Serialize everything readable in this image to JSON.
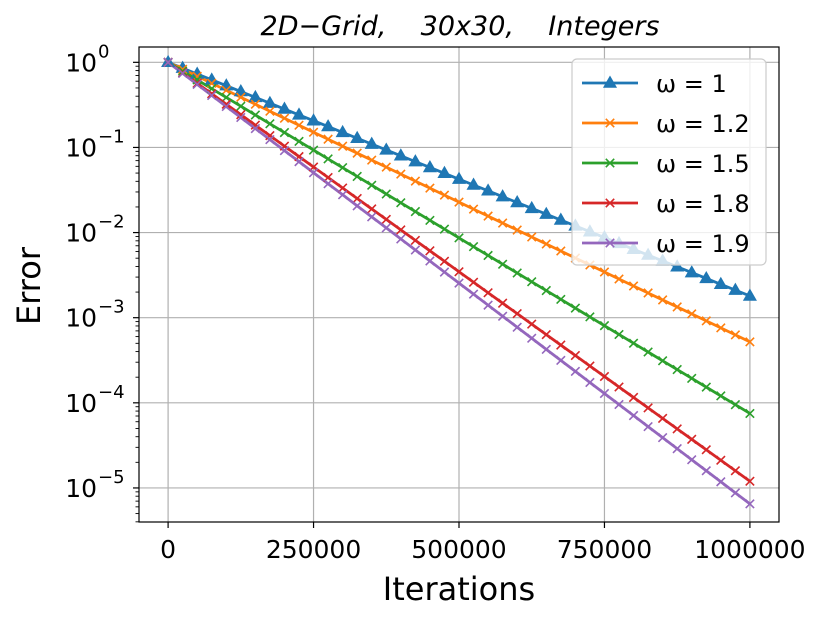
{
  "chart_data": {
    "type": "line",
    "title": "2D−Grid,    30x30,    Integers",
    "xlabel": "Iterations",
    "ylabel": "Error",
    "xlim": [
      -50000,
      1050000
    ],
    "ylim_log10": [
      -5.4,
      0.18
    ],
    "yscale": "log",
    "grid": true,
    "legend_location": "top-right",
    "x_ticks": [
      {
        "value": 0,
        "label": "0"
      },
      {
        "value": 250000,
        "label": "250000"
      },
      {
        "value": 500000,
        "label": "500000"
      },
      {
        "value": 750000,
        "label": "750000"
      },
      {
        "value": 1000000,
        "label": "1000000"
      }
    ],
    "y_ticks": [
      {
        "exp": 0,
        "base": "10",
        "sup": "0"
      },
      {
        "exp": -1,
        "base": "10",
        "sup": "−1"
      },
      {
        "exp": -2,
        "base": "10",
        "sup": "−2"
      },
      {
        "exp": -3,
        "base": "10",
        "sup": "−3"
      },
      {
        "exp": -4,
        "base": "10",
        "sup": "−4"
      },
      {
        "exp": -5,
        "base": "10",
        "sup": "−5"
      }
    ],
    "x_start": 0,
    "x_end": 1000000,
    "marker_count": 41,
    "series": [
      {
        "name": "ω = 1",
        "color": "#1f77b4",
        "marker": "triangle",
        "y_start": 1.0,
        "y_end": 0.0018
      },
      {
        "name": "ω = 1.2",
        "color": "#ff7f0e",
        "marker": "x",
        "y_start": 1.0,
        "y_end": 0.00052
      },
      {
        "name": "ω = 1.5",
        "color": "#2ca02c",
        "marker": "x",
        "y_start": 1.0,
        "y_end": 7.5e-05
      },
      {
        "name": "ω = 1.8",
        "color": "#d62728",
        "marker": "x",
        "y_start": 1.0,
        "y_end": 1.2e-05
      },
      {
        "name": "ω = 1.9",
        "color": "#9467bd",
        "marker": "x",
        "y_start": 1.0,
        "y_end": 6.5e-06
      }
    ]
  }
}
